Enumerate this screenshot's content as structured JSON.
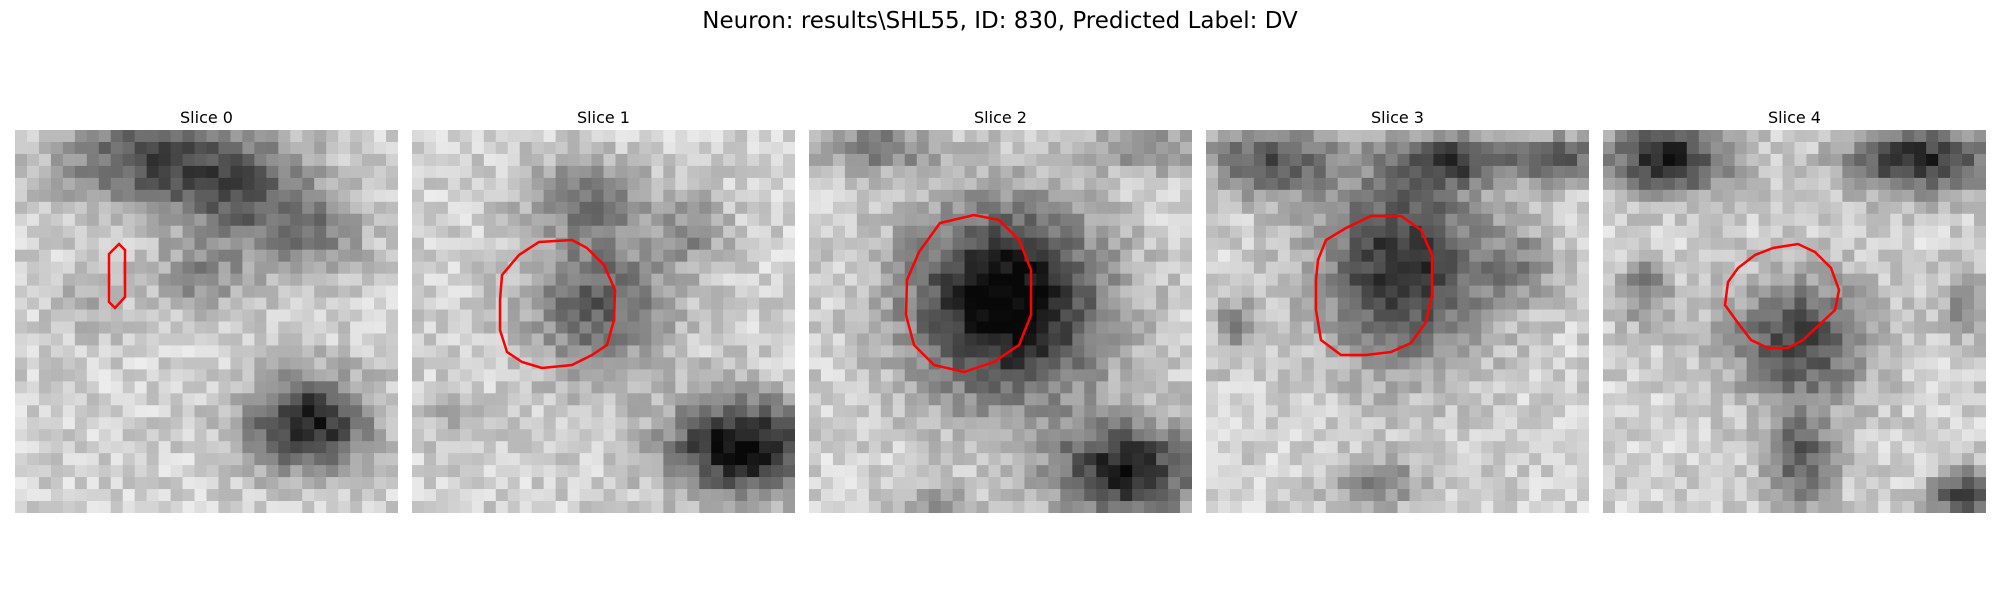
{
  "figure": {
    "title": "Neuron: results\\SHL55, ID: 830, Predicted Label: DV"
  },
  "slices": [
    {
      "title": "Slice 0",
      "contour_color": "#ff0000"
    },
    {
      "title": "Slice 1",
      "contour_color": "#ff0000"
    },
    {
      "title": "Slice 2",
      "contour_color": "#ff0000"
    },
    {
      "title": "Slice 3",
      "contour_color": "#ff0000"
    },
    {
      "title": "Slice 4",
      "contour_color": "#ff0000"
    }
  ]
}
